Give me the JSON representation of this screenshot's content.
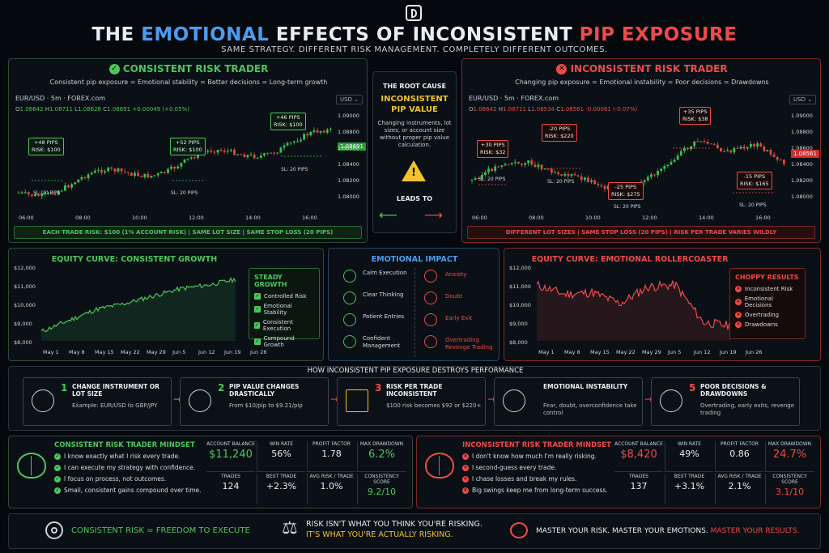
{
  "header": {
    "title_a": "THE ",
    "title_b": "EMOTIONAL",
    "title_c": " EFFECTS OF INCONSISTENT ",
    "title_d": "PIP EXPOSURE",
    "subtitle": "SAME STRATEGY. DIFFERENT RISK MANAGEMENT. COMPLETELY DIFFERENT OUTCOMES."
  },
  "colors": {
    "green": "#4bc75a",
    "red": "#ef4a4a",
    "blue": "#4b9cf0",
    "yellow": "#f2c230"
  },
  "left": {
    "title": "CONSISTENT RISK TRADER",
    "subtitle": "Consistent pip exposure = Emotional stability = Better decisions = Long-term growth",
    "symbol": "EUR/USD · 5m · FOREX.com",
    "currency": "USD",
    "ohlc": {
      "o": "O",
      "o_v": "1.08642",
      "h": "H",
      "h_v": "1.08711",
      "l": "L",
      "l_v": "1.08628",
      "c": "C",
      "c_v": "1.08691",
      "chg": "+0.00049 (+0.05%)"
    },
    "yticks": [
      "1.09000",
      "1.08800",
      "1.08600",
      "1.08400",
      "1.08200",
      "1.08000"
    ],
    "price_tag": "1.08691",
    "xticks": [
      "06:00",
      "08:00",
      "10:00",
      "12:00",
      "14:00",
      "16:00"
    ],
    "trades": [
      {
        "pips": "+48 PIPS",
        "risk": "RISK: $100",
        "sl": "SL: 20 PIPS"
      },
      {
        "pips": "+52 PIPS",
        "risk": "RISK: $100",
        "sl": "SL: 20 PIPS"
      },
      {
        "pips": "+46 PIPS",
        "risk": "RISK: $100",
        "sl": "SL: 20 PIPS"
      }
    ],
    "footer": "EACH TRADE RISK: $100 (1% ACCOUNT RISK)   |   SAME LOT SIZE   |   SAME STOP LOSS (20 PIPS)"
  },
  "center": {
    "label": "THE ROOT CAUSE",
    "cause1": "INCONSISTENT",
    "cause2": "PIP VALUE",
    "desc": "Changing instruments, lot sizes, or account size without proper pip value calculation.",
    "leads": "LEADS TO"
  },
  "right": {
    "title": "INCONSISTENT RISK TRADER",
    "subtitle": "Changing pip exposure = Emotional instability = Poor decisions = Drawdowns",
    "symbol": "EUR/USD · 5m · FOREX.com",
    "currency": "USD",
    "ohlc": {
      "o": "O",
      "o_v": "1.08642",
      "h": "H",
      "h_v": "1.08711",
      "l": "L",
      "l_v": "1.08534",
      "c": "C",
      "c_v": "1.08561",
      "chg": "-0.00081 (-0.07%)"
    },
    "yticks": [
      "1.09000",
      "1.08800",
      "1.08600",
      "1.08400",
      "1.08200",
      "1.08000"
    ],
    "price_tag": "1.08561",
    "xticks": [
      "06:00",
      "08:00",
      "10:00",
      "12:00",
      "14:00",
      "16:00"
    ],
    "trades": [
      {
        "pips": "+30 PIPS",
        "risk": "RISK: $32",
        "sl": "SL: 20 PIPS"
      },
      {
        "pips": "-20 PIPS",
        "risk": "RISK: $220",
        "sl": "SL: 20 PIPS"
      },
      {
        "pips": "-25 PIPS",
        "risk": "RISK: $275",
        "sl": "SL: 20 PIPS"
      },
      {
        "pips": "+35 PIPS",
        "risk": "RISK: $38",
        "sl": ""
      },
      {
        "pips": "-15 PIPS",
        "risk": "RISK: $165",
        "sl": "SL: 20 PIPS"
      }
    ],
    "footer": "DIFFERENT LOT SIZES   |   SAME STOP LOSS (20 PIPS)   |   RISK PER TRADE VARIES WILDLY"
  },
  "equity_left": {
    "title": "EQUITY CURVE: CONSISTENT GROWTH",
    "yticks": [
      "$12,000",
      "$11,000",
      "$10,000",
      "$9,000",
      "$8,000"
    ],
    "xticks": [
      "May 1",
      "May 8",
      "May 15",
      "May 22",
      "May 29",
      "Jun 5",
      "Jun 12",
      "Jun 19",
      "Jun 26"
    ],
    "box_title": "STEADY GROWTH",
    "items": [
      "Controlled Risk",
      "Emotional Stability",
      "Consistent Execution",
      "Compound Growth"
    ]
  },
  "equity_right": {
    "title": "EQUITY CURVE: EMOTIONAL ROLLERCOASTER",
    "yticks": [
      "$12,000",
      "$11,000",
      "$10,000",
      "$9,000",
      "$8,000"
    ],
    "xticks": [
      "May 1",
      "May 8",
      "May 15",
      "May 22",
      "May 29",
      "Jun 5",
      "Jun 12",
      "Jun 19",
      "Jun 26"
    ],
    "box_title": "CHOPPY RESULTS",
    "items": [
      "Inconsistent Risk",
      "Emotional Decisions",
      "Overtrading",
      "Drawdowns"
    ]
  },
  "chart_data": [
    {
      "type": "line",
      "title": "EQUITY CURVE: CONSISTENT GROWTH",
      "x": [
        "May 1",
        "May 8",
        "May 15",
        "May 22",
        "May 29",
        "Jun 5",
        "Jun 12",
        "Jun 16"
      ],
      "y": [
        8500,
        9100,
        9700,
        10000,
        10400,
        10800,
        11000,
        11300
      ],
      "ylim": [
        8000,
        12000
      ]
    },
    {
      "type": "line",
      "title": "EQUITY CURVE: EMOTIONAL ROLLERCOASTER",
      "x": [
        "May 1",
        "May 8",
        "May 15",
        "May 22",
        "May 29",
        "Jun 5",
        "Jun 12",
        "Jun 14"
      ],
      "y": [
        11000,
        10500,
        10600,
        10000,
        10900,
        11000,
        9000,
        8800
      ],
      "ylim": [
        8000,
        12000
      ]
    }
  ],
  "emotional": {
    "title": "EMOTIONAL IMPACT",
    "good": [
      "Calm Execution",
      "Clear Thinking",
      "Patient Entries",
      "Confident Management"
    ],
    "bad": [
      "Anxiety",
      "Doubt",
      "Early Exit",
      "Overtrading Revenge Trading"
    ]
  },
  "flow": {
    "title": "HOW INCONSISTENT PIP EXPOSURE DESTROYS PERFORMANCE",
    "steps": [
      {
        "n": "1",
        "title": "CHANGE INSTRUMENT OR LOT SIZE",
        "desc": "Example: EUR/USD to GBP/JPY"
      },
      {
        "n": "2",
        "title": "PIP VALUE CHANGES DRASTICALLY",
        "desc": "From $10/pip to $9.21/pip"
      },
      {
        "n": "3",
        "title": "RISK PER TRADE INCONSISTENT",
        "desc": "$100 risk becomes $92 or $220+"
      },
      {
        "n": "",
        "title": "EMOTIONAL INSTABILITY",
        "desc": "Fear, doubt, overconfidence take control"
      },
      {
        "n": "5",
        "title": "POOR DECISIONS & DRAWDOWNS",
        "desc": "Overtrading, early exits, revenge trading"
      }
    ]
  },
  "mind_left": {
    "title": "CONSISTENT RISK TRADER MINDSET",
    "items": [
      "I know exactly what I risk every trade.",
      "I can execute my strategy with confidence.",
      "I focus on process, not outcomes.",
      "Small, consistent gains compound over time."
    ],
    "stats": [
      {
        "h": "ACCOUNT BALANCE",
        "v": "$11,240"
      },
      {
        "h": "WIN RATE",
        "v": "56%"
      },
      {
        "h": "PROFIT FACTOR",
        "v": "1.78"
      },
      {
        "h": "MAX DRAWDOWN",
        "v": "6.2%"
      },
      {
        "h": "TRADES",
        "v": "124"
      },
      {
        "h": "BEST TRADE",
        "v": "+2.3%"
      },
      {
        "h": "AVG RISK / TRADE",
        "v": "1.0%"
      },
      {
        "h": "CONSISTENCY SCORE",
        "v": "9.2/10"
      }
    ]
  },
  "mind_right": {
    "title": "INCONSISTENT RISK TRADER MINDSET",
    "items": [
      "I don't know how much I'm really risking.",
      "I second-guess every trade.",
      "I chase losses and break my rules.",
      "Big swings keep me from long-term success."
    ],
    "stats": [
      {
        "h": "ACCOUNT BALANCE",
        "v": "$8,420"
      },
      {
        "h": "WIN RATE",
        "v": "49%"
      },
      {
        "h": "PROFIT FACTOR",
        "v": "0.86"
      },
      {
        "h": "MAX DRAWDOWN",
        "v": "24.7%"
      },
      {
        "h": "TRADES",
        "v": "137"
      },
      {
        "h": "BEST TRADE",
        "v": "+3.1%"
      },
      {
        "h": "AVG RISK / TRADE",
        "v": "2.1%"
      },
      {
        "h": "CONSISTENCY SCORE",
        "v": "3.1/10"
      }
    ]
  },
  "footer": {
    "a": "CONSISTENT RISK = FREEDOM TO EXECUTE",
    "b1": "RISK ISN'T WHAT YOU THINK YOU'RE RISKING.",
    "b2": "IT'S WHAT YOU'RE ACTUALLY RISKING.",
    "c1": "MASTER YOUR RISK. MASTER YOUR EMOTIONS. ",
    "c2": "MASTER YOUR RESULTS."
  }
}
